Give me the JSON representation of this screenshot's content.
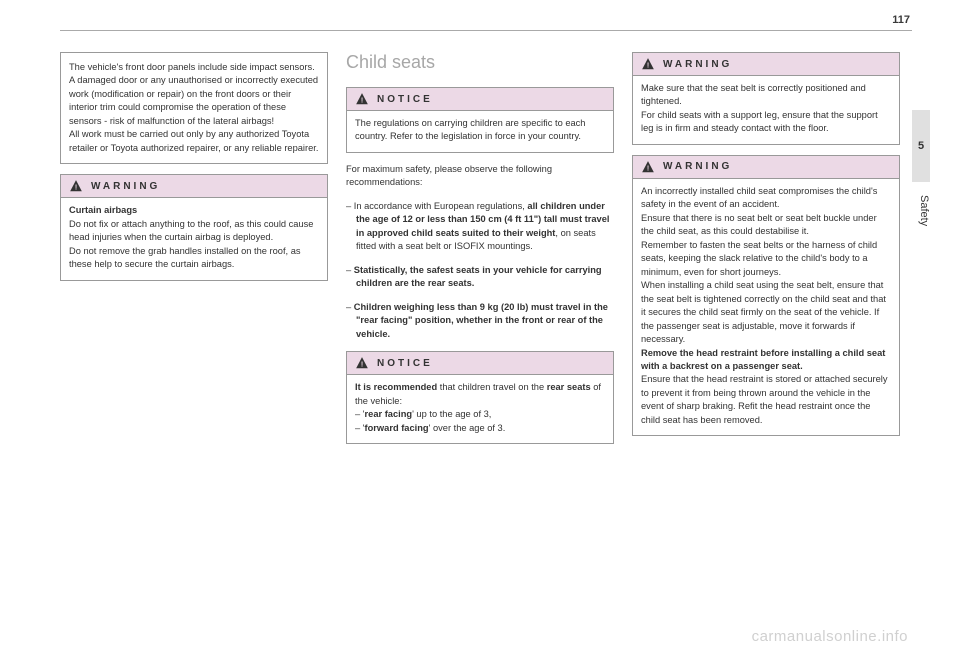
{
  "page_number": "117",
  "chapter_tab": "5",
  "chapter_label": "Safety",
  "watermark": "carmanualsonline.info",
  "colors": {
    "header_bg": "#ecd9e6",
    "heading_gray": "#a7a7a7",
    "text": "#333333",
    "border": "#999999"
  },
  "labels": {
    "warning": "WARNING",
    "notice": "NOTICE"
  },
  "col1": {
    "box1_html": "The vehicle's front door panels include side impact sensors.<br>A damaged door or any unauthorised or incorrectly executed work (modification or repair) on the front doors or their interior trim could compromise the operation of these sensors - risk of malfunction of the lateral airbags!<br>All work must be carried out only by any authorized Toyota retailer or Toyota authorized repairer, or any reliable repairer.",
    "box2_title": "Curtain airbags",
    "box2_html": "Do not fix or attach anything to the roof, as this could cause head injuries when the curtain airbag is deployed.<br>Do not remove the grab handles installed on the roof, as these help to secure the curtain airbags."
  },
  "col2": {
    "heading": "Child seats",
    "notice1_html": "The regulations on carrying children are specific to each country. Refer to the legislation in force in your country.",
    "para1": "For maximum safety, please observe the following recommendations:",
    "li1_html": "– In accordance with European regulations, <b>all children under the age of 12 or less than 150 cm (4 ft 11\") tall must travel in approved child seats suited to their weight</b>, on seats fitted with a seat belt or ISOFIX mountings.",
    "li2_html": "– <b>Statistically, the safest seats in your vehicle for carrying children are the rear seats.</b>",
    "li3_html": "– <b>Children weighing less than 9 kg (20 lb) must travel in the \"rear facing\" position, whether in the front or rear of the vehicle.</b>",
    "notice2_html": "<b>It is recommended</b> that children travel on the <b>rear seats</b> of the vehicle:<br>– '<b>rear facing</b>' up to the age of 3,<br>– '<b>forward facing</b>' over the age of 3."
  },
  "col3": {
    "warn1_html": "Make sure that the seat belt is correctly positioned and tightened.<br>For child seats with a support leg, ensure that the support leg is in firm and steady contact with the floor.",
    "warn2_html": "An incorrectly installed child seat compromises the child's safety in the event of an accident.<br>Ensure that there is no seat belt or seat belt buckle under the child seat, as this could destabilise it.<br>Remember to fasten the seat belts or the harness of child seats, keeping the slack relative to the child's body to a minimum, even for short journeys.<br>When installing a child seat using the seat belt, ensure that the seat belt is tightened correctly on the child seat and that it secures the child seat firmly on the seat of the vehicle. If the passenger seat is adjustable, move it forwards if necessary.<br><b>Remove the head restraint before installing a child seat with a backrest on a passenger seat.</b><br>Ensure that the head restraint is stored or attached securely to prevent it from being thrown around the vehicle in the event of sharp braking. Refit the head restraint once the child seat has been removed."
  }
}
